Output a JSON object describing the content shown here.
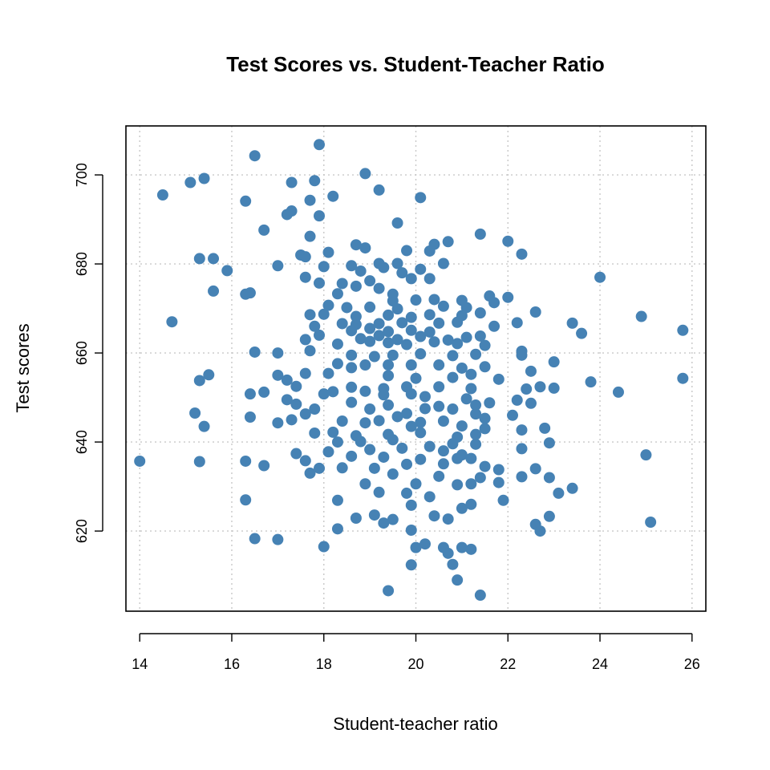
{
  "chart_data": {
    "type": "scatter",
    "title": "Test Scores vs. Student-Teacher Ratio",
    "xlabel": "Student-teacher ratio",
    "ylabel": "Test scores",
    "xlim": [
      13.7,
      26.3
    ],
    "ylim": [
      602,
      711
    ],
    "xticks": [
      14,
      16,
      18,
      20,
      22,
      24,
      26
    ],
    "yticks": [
      620,
      640,
      660,
      680,
      700
    ],
    "grid": true,
    "point_color": "#4682B4",
    "points": [
      [
        16.5,
        704.3
      ],
      [
        17.9,
        706.8
      ],
      [
        15.4,
        699.2
      ],
      [
        15.1,
        698.3
      ],
      [
        14.5,
        695.5
      ],
      [
        17.3,
        698.3
      ],
      [
        17.8,
        698.7
      ],
      [
        18.9,
        700.3
      ],
      [
        19.2,
        696.6
      ],
      [
        20.1,
        694.9
      ],
      [
        16.3,
        694.1
      ],
      [
        17.7,
        694.3
      ],
      [
        18.2,
        695.2
      ],
      [
        17.2,
        691.1
      ],
      [
        17.3,
        691.9
      ],
      [
        17.9,
        690.8
      ],
      [
        19.6,
        689.2
      ],
      [
        16.7,
        687.6
      ],
      [
        17.7,
        686.2
      ],
      [
        21.4,
        686.7
      ],
      [
        22.0,
        685.1
      ],
      [
        20.7,
        685.0
      ],
      [
        20.4,
        684.4
      ],
      [
        18.7,
        684.3
      ],
      [
        18.9,
        683.6
      ],
      [
        19.8,
        683.0
      ],
      [
        20.3,
        682.9
      ],
      [
        22.3,
        682.2
      ],
      [
        18.1,
        682.6
      ],
      [
        17.5,
        682.0
      ],
      [
        17.6,
        681.6
      ],
      [
        15.3,
        681.2
      ],
      [
        15.6,
        681.2
      ],
      [
        19.2,
        680.1
      ],
      [
        19.6,
        680.1
      ],
      [
        20.6,
        680.1
      ],
      [
        18.0,
        679.4
      ],
      [
        17.0,
        679.6
      ],
      [
        19.3,
        679.2
      ],
      [
        18.6,
        679.6
      ],
      [
        20.1,
        678.8
      ],
      [
        15.9,
        678.5
      ],
      [
        19.7,
        678.0
      ],
      [
        18.8,
        678.4
      ],
      [
        24.0,
        677.0
      ],
      [
        17.6,
        677.0
      ],
      [
        18.4,
        675.6
      ],
      [
        17.9,
        675.7
      ],
      [
        19.9,
        676.7
      ],
      [
        20.3,
        676.7
      ],
      [
        19.0,
        676.2
      ],
      [
        18.7,
        675.0
      ],
      [
        19.2,
        674.5
      ],
      [
        15.6,
        673.9
      ],
      [
        16.4,
        673.5
      ],
      [
        16.3,
        673.2
      ],
      [
        18.3,
        673.3
      ],
      [
        19.5,
        673.2
      ],
      [
        21.6,
        672.8
      ],
      [
        22.0,
        672.5
      ],
      [
        19.5,
        671.7
      ],
      [
        20.0,
        671.9
      ],
      [
        20.4,
        672.0
      ],
      [
        21.0,
        671.8
      ],
      [
        21.7,
        671.3
      ],
      [
        18.1,
        670.7
      ],
      [
        18.5,
        670.2
      ],
      [
        19.0,
        670.3
      ],
      [
        19.6,
        669.9
      ],
      [
        20.6,
        670.5
      ],
      [
        21.1,
        670.2
      ],
      [
        21.4,
        669.0
      ],
      [
        22.6,
        669.2
      ],
      [
        18.0,
        668.7
      ],
      [
        18.7,
        668.2
      ],
      [
        19.4,
        668.5
      ],
      [
        19.9,
        668.0
      ],
      [
        20.3,
        668.6
      ],
      [
        21.0,
        668.4
      ],
      [
        24.9,
        668.2
      ],
      [
        17.7,
        668.6
      ],
      [
        14.7,
        667.0
      ],
      [
        18.4,
        666.6
      ],
      [
        18.7,
        666.4
      ],
      [
        19.2,
        666.6
      ],
      [
        19.7,
        666.8
      ],
      [
        20.5,
        666.7
      ],
      [
        20.9,
        666.9
      ],
      [
        22.2,
        666.8
      ],
      [
        23.4,
        666.7
      ],
      [
        17.8,
        666.0
      ],
      [
        18.6,
        665.0
      ],
      [
        19.0,
        665.5
      ],
      [
        19.4,
        664.8
      ],
      [
        19.9,
        665.1
      ],
      [
        20.3,
        664.7
      ],
      [
        21.7,
        666.0
      ],
      [
        25.8,
        665.1
      ],
      [
        17.9,
        664.0
      ],
      [
        18.8,
        663.2
      ],
      [
        19.2,
        663.9
      ],
      [
        19.6,
        663.0
      ],
      [
        20.1,
        663.7
      ],
      [
        20.7,
        662.9
      ],
      [
        21.1,
        663.5
      ],
      [
        21.4,
        663.8
      ],
      [
        23.6,
        664.4
      ],
      [
        17.6,
        663.0
      ],
      [
        18.3,
        662.0
      ],
      [
        19.0,
        662.6
      ],
      [
        19.4,
        662.3
      ],
      [
        19.8,
        661.9
      ],
      [
        20.4,
        662.5
      ],
      [
        20.9,
        662.1
      ],
      [
        21.5,
        661.7
      ],
      [
        22.3,
        660.4
      ],
      [
        16.5,
        660.2
      ],
      [
        17.0,
        660.0
      ],
      [
        17.7,
        660.5
      ],
      [
        18.6,
        659.5
      ],
      [
        19.1,
        659.2
      ],
      [
        19.5,
        659.5
      ],
      [
        20.1,
        659.8
      ],
      [
        20.8,
        659.4
      ],
      [
        21.3,
        659.7
      ],
      [
        22.3,
        659.5
      ],
      [
        18.3,
        657.6
      ],
      [
        18.9,
        657.3
      ],
      [
        19.4,
        657.3
      ],
      [
        19.9,
        657.3
      ],
      [
        20.5,
        657.3
      ],
      [
        21.0,
        656.6
      ],
      [
        21.5,
        656.9
      ],
      [
        23.0,
        658.0
      ],
      [
        22.5,
        655.9
      ],
      [
        18.6,
        656.7
      ],
      [
        18.1,
        655.4
      ],
      [
        17.6,
        655.4
      ],
      [
        17.0,
        655.0
      ],
      [
        15.5,
        655.1
      ],
      [
        15.3,
        653.8
      ],
      [
        17.2,
        653.9
      ],
      [
        19.4,
        654.9
      ],
      [
        20.0,
        654.3
      ],
      [
        20.8,
        654.5
      ],
      [
        21.2,
        655.2
      ],
      [
        21.8,
        654.1
      ],
      [
        23.8,
        653.5
      ],
      [
        17.4,
        652.5
      ],
      [
        18.6,
        652.3
      ],
      [
        19.3,
        652.0
      ],
      [
        19.8,
        652.4
      ],
      [
        20.5,
        652.4
      ],
      [
        21.2,
        652.0
      ],
      [
        22.4,
        651.9
      ],
      [
        22.7,
        652.4
      ],
      [
        23.0,
        652.1
      ],
      [
        24.4,
        651.2
      ],
      [
        25.8,
        654.3
      ],
      [
        16.4,
        650.8
      ],
      [
        16.7,
        651.2
      ],
      [
        18.0,
        650.8
      ],
      [
        18.2,
        651.3
      ],
      [
        18.9,
        651.4
      ],
      [
        19.3,
        650.6
      ],
      [
        19.9,
        650.8
      ],
      [
        20.2,
        650.2
      ],
      [
        21.1,
        649.7
      ],
      [
        22.2,
        649.4
      ],
      [
        17.2,
        649.5
      ],
      [
        17.4,
        648.5
      ],
      [
        18.6,
        648.9
      ],
      [
        19.4,
        648.3
      ],
      [
        20.5,
        648.0
      ],
      [
        21.3,
        648.3
      ],
      [
        21.6,
        648.8
      ],
      [
        22.5,
        648.7
      ],
      [
        17.8,
        647.4
      ],
      [
        19.0,
        647.4
      ],
      [
        19.8,
        646.4
      ],
      [
        20.2,
        647.5
      ],
      [
        20.8,
        647.4
      ],
      [
        21.3,
        646.3
      ],
      [
        15.2,
        646.5
      ],
      [
        16.4,
        645.6
      ],
      [
        17.6,
        646.3
      ],
      [
        19.6,
        645.7
      ],
      [
        18.4,
        644.7
      ],
      [
        19.2,
        644.8
      ],
      [
        20.1,
        644.4
      ],
      [
        20.6,
        644.7
      ],
      [
        21.5,
        645.3
      ],
      [
        22.1,
        646.0
      ],
      [
        17.0,
        644.3
      ],
      [
        17.3,
        645.0
      ],
      [
        18.9,
        644.3
      ],
      [
        19.9,
        643.5
      ],
      [
        21.0,
        643.6
      ],
      [
        21.5,
        643.0
      ],
      [
        22.8,
        643.1
      ],
      [
        15.4,
        643.5
      ],
      [
        17.8,
        642.0
      ],
      [
        18.2,
        642.2
      ],
      [
        18.7,
        641.4
      ],
      [
        19.4,
        641.7
      ],
      [
        20.1,
        642.1
      ],
      [
        20.9,
        641.1
      ],
      [
        21.3,
        641.7
      ],
      [
        22.3,
        642.7
      ],
      [
        18.3,
        640.0
      ],
      [
        18.8,
        640.1
      ],
      [
        19.5,
        640.5
      ],
      [
        20.3,
        639.0
      ],
      [
        20.8,
        639.6
      ],
      [
        21.3,
        639.5
      ],
      [
        22.9,
        639.8
      ],
      [
        17.4,
        637.4
      ],
      [
        18.1,
        637.8
      ],
      [
        19.0,
        638.3
      ],
      [
        19.7,
        638.6
      ],
      [
        20.6,
        638.0
      ],
      [
        21.0,
        637.1
      ],
      [
        22.3,
        638.5
      ],
      [
        17.6,
        635.8
      ],
      [
        18.6,
        636.8
      ],
      [
        19.3,
        636.6
      ],
      [
        20.1,
        636.1
      ],
      [
        20.9,
        636.3
      ],
      [
        21.2,
        636.3
      ],
      [
        14.0,
        635.7
      ],
      [
        15.3,
        635.6
      ],
      [
        16.3,
        635.7
      ],
      [
        16.7,
        634.7
      ],
      [
        17.9,
        634.1
      ],
      [
        18.4,
        634.2
      ],
      [
        19.1,
        634.1
      ],
      [
        19.8,
        635.0
      ],
      [
        20.6,
        635.1
      ],
      [
        21.5,
        634.5
      ],
      [
        21.8,
        633.8
      ],
      [
        22.6,
        634.0
      ],
      [
        17.7,
        633.0
      ],
      [
        19.5,
        632.8
      ],
      [
        20.5,
        632.3
      ],
      [
        21.4,
        632.0
      ],
      [
        22.3,
        632.2
      ],
      [
        22.9,
        632.0
      ],
      [
        25.0,
        637.1
      ],
      [
        18.9,
        630.6
      ],
      [
        20.0,
        630.6
      ],
      [
        20.9,
        630.4
      ],
      [
        21.2,
        630.6
      ],
      [
        21.8,
        630.9
      ],
      [
        23.1,
        628.5
      ],
      [
        23.4,
        629.6
      ],
      [
        19.2,
        628.7
      ],
      [
        19.8,
        628.5
      ],
      [
        20.3,
        627.7
      ],
      [
        16.3,
        627.0
      ],
      [
        18.3,
        626.9
      ],
      [
        19.9,
        625.8
      ],
      [
        21.0,
        625.1
      ],
      [
        21.2,
        626.0
      ],
      [
        21.9,
        626.9
      ],
      [
        22.6,
        621.5
      ],
      [
        22.7,
        620.0
      ],
      [
        22.9,
        623.3
      ],
      [
        19.1,
        623.6
      ],
      [
        19.5,
        622.6
      ],
      [
        20.4,
        623.4
      ],
      [
        20.7,
        622.7
      ],
      [
        18.3,
        620.5
      ],
      [
        18.7,
        622.9
      ],
      [
        19.3,
        621.8
      ],
      [
        25.1,
        622.0
      ],
      [
        16.5,
        618.3
      ],
      [
        17.0,
        618.1
      ],
      [
        19.9,
        620.2
      ],
      [
        20.0,
        616.3
      ],
      [
        20.2,
        617.1
      ],
      [
        20.6,
        616.3
      ],
      [
        21.0,
        616.3
      ],
      [
        21.2,
        615.9
      ],
      [
        18.0,
        616.5
      ],
      [
        19.9,
        612.4
      ],
      [
        20.8,
        612.5
      ],
      [
        20.9,
        609.0
      ],
      [
        21.4,
        605.6
      ],
      [
        19.4,
        606.6
      ],
      [
        20.7,
        615.0
      ]
    ]
  }
}
